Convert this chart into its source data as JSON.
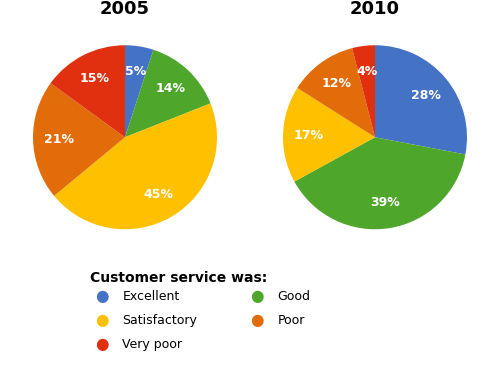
{
  "title_2005": "2005",
  "title_2010": "2010",
  "categories_2005": [
    "Excellent",
    "Good",
    "Satisfactory",
    "Poor",
    "Very poor"
  ],
  "categories_2010": [
    "Excellent",
    "Good",
    "Satisfactory",
    "Poor",
    "Very poor"
  ],
  "colors": {
    "Excellent": "#4472C4",
    "Good": "#4EA72A",
    "Satisfactory": "#FFC000",
    "Poor": "#E26B0A",
    "Very poor": "#E03010"
  },
  "data_2005": [
    5,
    14,
    45,
    21,
    15
  ],
  "data_2010": [
    28,
    39,
    17,
    12,
    4
  ],
  "startangle_2005": 90,
  "startangle_2010": 90,
  "legend_title": "Customer service was:",
  "legend_col1": [
    "Excellent",
    "Satisfactory",
    "Very poor"
  ],
  "legend_col2": [
    "Good",
    "Poor"
  ],
  "background_color": "#ffffff",
  "label_fontsize": 9,
  "title_fontsize": 13,
  "pct_distance": 0.72
}
